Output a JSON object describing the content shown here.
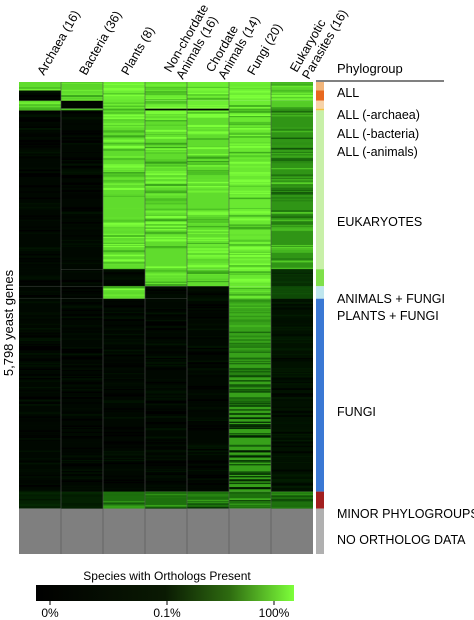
{
  "chart_data": {
    "type": "heatmap",
    "y_axis_label": "5,798 yeast genes",
    "columns": [
      "Archaea (16)",
      "Bacteria (36)",
      "Plants (8)",
      "Non-chordate Animals (16)",
      "Chordate Animals (14)",
      "Fungi (20)",
      "Eukaryotic Parasites (16)"
    ],
    "column_label_lines": [
      [
        "Archaea (16)"
      ],
      [
        "Bacteria (36)"
      ],
      [
        "Plants (8)"
      ],
      [
        "Non-chordate",
        "Animals (16)"
      ],
      [
        "Chordate",
        "Animals (14)"
      ],
      [
        "Fungi (20)"
      ],
      [
        "Eukaryotic",
        "Parasites (16)"
      ]
    ],
    "phylogroup_header": "Phylogroup",
    "phylogroups": [
      {
        "label": "ALL",
        "color": "#f2b57a",
        "rows": 75,
        "values": [
          0.85,
          0.82,
          0.92,
          0.92,
          0.92,
          0.92,
          0.82
        ]
      },
      {
        "label": "ALL (-archaea)",
        "color": "#e8681f",
        "rows": 90,
        "values": [
          0.02,
          0.85,
          0.92,
          0.92,
          0.92,
          0.92,
          0.8
        ]
      },
      {
        "label": "ALL (-bacteria)",
        "color": "#f6d2a8",
        "rows": 70,
        "values": [
          0.85,
          0.02,
          0.9,
          0.92,
          0.92,
          0.92,
          0.78
        ]
      },
      {
        "label": "ALL (-animals)",
        "color": "#f5c242",
        "rows": 15,
        "values": [
          0.8,
          0.8,
          0.85,
          0.03,
          0.03,
          0.85,
          0.7
        ]
      },
      {
        "label": "EUKARYOTES",
        "color": "#c8f0a8",
        "rows": 1400,
        "values": [
          0.02,
          0.02,
          0.85,
          0.85,
          0.85,
          0.9,
          0.55
        ]
      },
      {
        "label": "ANIMALS + FUNGI",
        "color": "#7fe04a",
        "rows": 150,
        "values": [
          0.02,
          0.02,
          0.02,
          0.85,
          0.85,
          0.9,
          0.15
        ]
      },
      {
        "label": "PLANTS + FUNGI",
        "color": "#bfe6ee",
        "rows": 110,
        "values": [
          0.02,
          0.02,
          0.85,
          0.03,
          0.03,
          0.9,
          0.25
        ]
      },
      {
        "label": "FUNGI",
        "color": "#3a78d4",
        "rows": 1700,
        "values": [
          0.02,
          0.02,
          0.02,
          0.02,
          0.02,
          0.6,
          0.05
        ]
      },
      {
        "label": "MINOR PHYLOGROUPS",
        "color": "#a31f1f",
        "rows": 150,
        "values": [
          0.1,
          0.1,
          0.4,
          0.4,
          0.4,
          0.4,
          0.4
        ]
      },
      {
        "label": "NO ORTHOLOG DATA",
        "color": "#b0b0b0",
        "rows": 400,
        "values": [
          null,
          null,
          null,
          null,
          null,
          null,
          null
        ]
      }
    ],
    "colorbar": {
      "title": "Species with Orthologs Present",
      "ticks": [
        "0%",
        "0.1%",
        "100%"
      ],
      "colors": [
        "#000000",
        "#1a4a08",
        "#7dff3a"
      ]
    }
  }
}
